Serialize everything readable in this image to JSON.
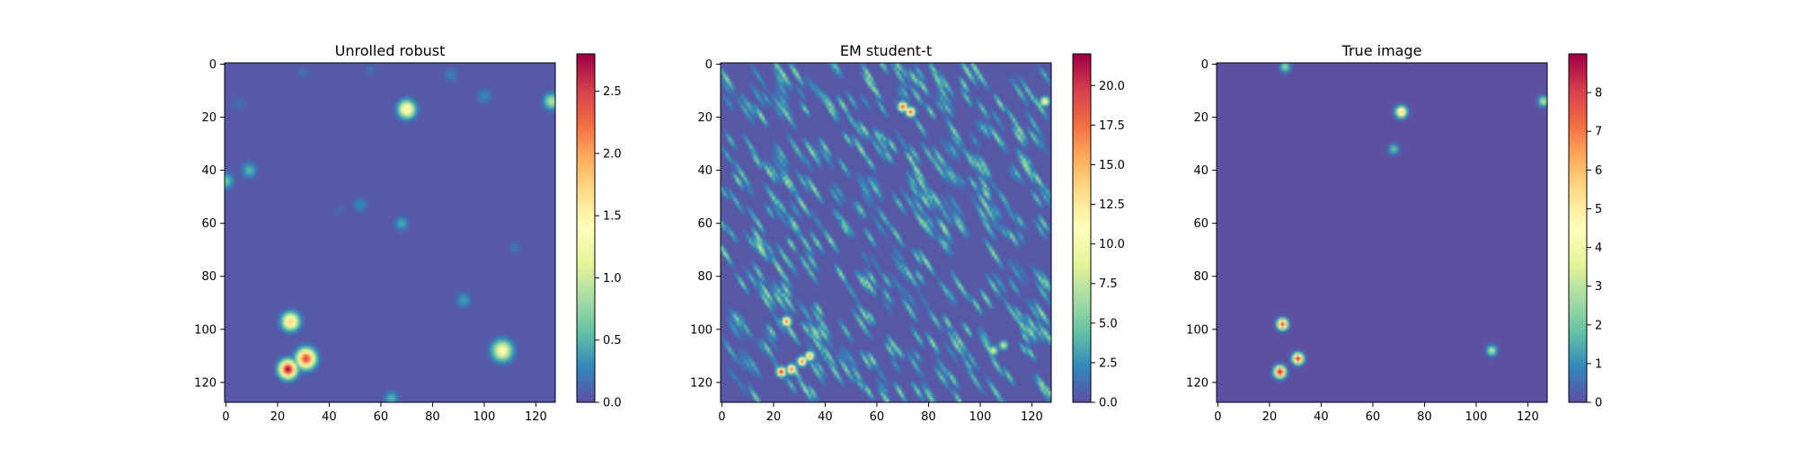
{
  "chart_data": [
    {
      "type": "heatmap",
      "title": "Unrolled robust",
      "colormap": "Spectral_r",
      "x_range": [
        0,
        127
      ],
      "y_range": [
        0,
        127
      ],
      "y_axis_inverted": true,
      "x_ticks": [
        0,
        20,
        40,
        60,
        80,
        100,
        120
      ],
      "y_ticks": [
        0,
        20,
        40,
        60,
        80,
        100,
        120
      ],
      "x_tick_labels": [
        "0",
        "20",
        "40",
        "60",
        "80",
        "100",
        "120"
      ],
      "y_tick_labels": [
        "0",
        "20",
        "40",
        "60",
        "80",
        "100",
        "120"
      ],
      "background": 0.05,
      "colorbar": {
        "range": [
          0,
          2.8
        ],
        "ticks": [
          0,
          0.5,
          1.0,
          1.5,
          2.0,
          2.5
        ],
        "tick_labels": [
          "0.0",
          "0.5",
          "1.0",
          "1.5",
          "2.0",
          "2.5"
        ]
      },
      "blobs": [
        {
          "x": 70,
          "y": 17,
          "value": 1.6,
          "sigma": 2.2
        },
        {
          "x": 25,
          "y": 97,
          "value": 1.8,
          "sigma": 2.2
        },
        {
          "x": 24,
          "y": 115,
          "value": 2.8,
          "sigma": 2.2
        },
        {
          "x": 31,
          "y": 111,
          "value": 2.5,
          "sigma": 2.4
        },
        {
          "x": 107,
          "y": 108,
          "value": 1.4,
          "sigma": 2.6
        },
        {
          "x": 126,
          "y": 14,
          "value": 0.9,
          "sigma": 2.0
        },
        {
          "x": 0,
          "y": 44,
          "value": 0.6,
          "sigma": 2.0
        },
        {
          "x": 9,
          "y": 40,
          "value": 0.5,
          "sigma": 2.0
        },
        {
          "x": 52,
          "y": 53,
          "value": 0.3,
          "sigma": 2.0
        },
        {
          "x": 68,
          "y": 60,
          "value": 0.45,
          "sigma": 1.8
        },
        {
          "x": 92,
          "y": 89,
          "value": 0.4,
          "sigma": 2.0
        },
        {
          "x": 87,
          "y": 4,
          "value": 0.25,
          "sigma": 2.0
        },
        {
          "x": 100,
          "y": 12,
          "value": 0.3,
          "sigma": 2.0
        },
        {
          "x": 64,
          "y": 126,
          "value": 0.5,
          "sigma": 1.8
        },
        {
          "x": 56,
          "y": 2,
          "value": 0.2,
          "sigma": 1.6
        },
        {
          "x": 30,
          "y": 3,
          "value": 0.2,
          "sigma": 1.6
        },
        {
          "x": 44,
          "y": 55,
          "value": 0.15,
          "sigma": 1.6
        },
        {
          "x": 112,
          "y": 69,
          "value": 0.2,
          "sigma": 1.8
        },
        {
          "x": 5,
          "y": 15,
          "value": 0.15,
          "sigma": 2.5
        }
      ]
    },
    {
      "type": "heatmap",
      "title": "EM student-t",
      "colormap": "Spectral_r",
      "x_range": [
        0,
        127
      ],
      "y_range": [
        0,
        127
      ],
      "y_axis_inverted": true,
      "x_ticks": [
        0,
        20,
        40,
        60,
        80,
        100,
        120
      ],
      "y_ticks": [
        0,
        20,
        40,
        60,
        80,
        100,
        120
      ],
      "x_tick_labels": [
        "0",
        "20",
        "40",
        "60",
        "80",
        "100",
        "120"
      ],
      "y_tick_labels": [
        "0",
        "20",
        "40",
        "60",
        "80",
        "100",
        "120"
      ],
      "background": 0.3,
      "texture": "diagonal-streaks",
      "colorbar": {
        "range": [
          0,
          22
        ],
        "ticks": [
          0,
          2.5,
          5,
          7.5,
          10,
          12.5,
          15,
          17.5,
          20
        ],
        "tick_labels": [
          "0.0",
          "2.5",
          "5.0",
          "7.5",
          "10.0",
          "12.5",
          "15.0",
          "17.5",
          "20.0"
        ]
      },
      "blobs": [
        {
          "x": 70,
          "y": 16,
          "value": 20,
          "sigma": 1.1
        },
        {
          "x": 73,
          "y": 18,
          "value": 19,
          "sigma": 1.1
        },
        {
          "x": 25,
          "y": 97,
          "value": 18,
          "sigma": 1.1
        },
        {
          "x": 23,
          "y": 116,
          "value": 21,
          "sigma": 1.1
        },
        {
          "x": 27,
          "y": 115,
          "value": 18,
          "sigma": 1.1
        },
        {
          "x": 31,
          "y": 112,
          "value": 17,
          "sigma": 1.1
        },
        {
          "x": 34,
          "y": 110,
          "value": 15,
          "sigma": 1.1
        },
        {
          "x": 125,
          "y": 14,
          "value": 12,
          "sigma": 1.1
        },
        {
          "x": 105,
          "y": 108,
          "value": 9,
          "sigma": 1.1
        },
        {
          "x": 109,
          "y": 106,
          "value": 8,
          "sigma": 1.1
        }
      ]
    },
    {
      "type": "heatmap",
      "title": "True image",
      "colormap": "Spectral_r",
      "x_range": [
        0,
        127
      ],
      "y_range": [
        0,
        127
      ],
      "y_axis_inverted": true,
      "x_ticks": [
        0,
        20,
        40,
        60,
        80,
        100,
        120
      ],
      "y_ticks": [
        0,
        20,
        40,
        60,
        80,
        100,
        120
      ],
      "x_tick_labels": [
        "0",
        "20",
        "40",
        "60",
        "80",
        "100",
        "120"
      ],
      "y_tick_labels": [
        "0",
        "20",
        "40",
        "60",
        "80",
        "100",
        "120"
      ],
      "background": 0.0,
      "colorbar": {
        "range": [
          0,
          9
        ],
        "ticks": [
          0,
          1,
          2,
          3,
          4,
          5,
          6,
          7,
          8
        ],
        "tick_labels": [
          "0",
          "1",
          "2",
          "3",
          "4",
          "5",
          "6",
          "7",
          "8"
        ]
      },
      "blobs": [
        {
          "x": 26,
          "y": 1,
          "value": 2.5,
          "sigma": 1.3
        },
        {
          "x": 71,
          "y": 18,
          "value": 5.5,
          "sigma": 1.4
        },
        {
          "x": 68,
          "y": 32,
          "value": 2.0,
          "sigma": 1.3
        },
        {
          "x": 126,
          "y": 14,
          "value": 3.0,
          "sigma": 1.3
        },
        {
          "x": 25,
          "y": 98,
          "value": 8.0,
          "sigma": 1.3
        },
        {
          "x": 31,
          "y": 111,
          "value": 8.5,
          "sigma": 1.3
        },
        {
          "x": 24,
          "y": 116,
          "value": 8.8,
          "sigma": 1.4
        },
        {
          "x": 106,
          "y": 108,
          "value": 3.0,
          "sigma": 1.3
        }
      ]
    }
  ]
}
